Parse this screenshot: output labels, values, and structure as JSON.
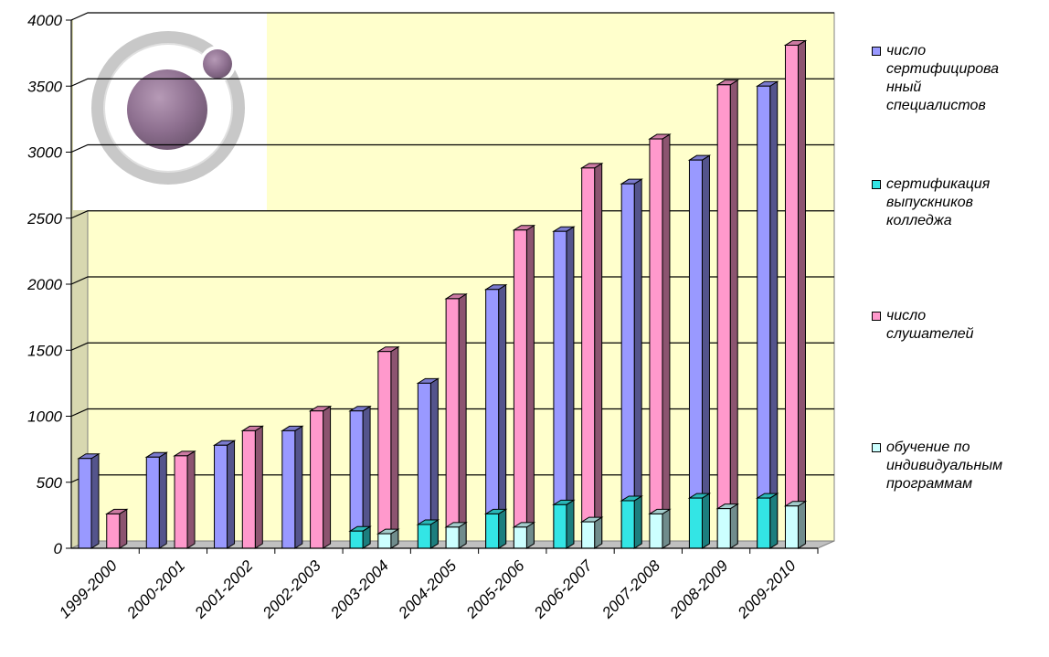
{
  "chart_data": {
    "type": "bar",
    "title": "",
    "xlabel": "",
    "ylabel": "",
    "ylim": [
      0,
      4000
    ],
    "y_ticks": [
      0,
      500,
      1000,
      1500,
      2000,
      2500,
      3000,
      3500,
      4000
    ],
    "grid": true,
    "legend_position": "right",
    "background_color": "#ffffcc",
    "categories": [
      "1999-2000",
      "2000-2001",
      "2001-2002",
      "2002-2003",
      "2003-2004",
      "2004-2005",
      "2005-2006",
      "2006-2007",
      "2007-2008",
      "2008-2009",
      "2009-2010"
    ],
    "series": [
      {
        "name": "число\nсертифицирова\nнный\nспециалистов",
        "color": "#9999ff",
        "values": [
          680,
          690,
          780,
          890,
          1040,
          1250,
          1960,
          2400,
          2760,
          2940,
          3500
        ]
      },
      {
        "name": "сертификация\nвыпускников\nколледжа",
        "color": "#33e5e5",
        "values": [
          0,
          0,
          0,
          0,
          130,
          180,
          260,
          330,
          360,
          380,
          380
        ]
      },
      {
        "name": "число\nслушателей",
        "color": "#ff99cc",
        "values": [
          260,
          700,
          890,
          1040,
          1490,
          1890,
          2410,
          2880,
          3100,
          3510,
          3810
        ]
      },
      {
        "name": "обучение по\nиндивидуальным\nпрограммам",
        "color": "#ccffff",
        "values": [
          0,
          0,
          0,
          0,
          110,
          160,
          160,
          200,
          260,
          300,
          320
        ]
      }
    ]
  },
  "decoration": {
    "logo_icon": "atom-logo-icon"
  }
}
